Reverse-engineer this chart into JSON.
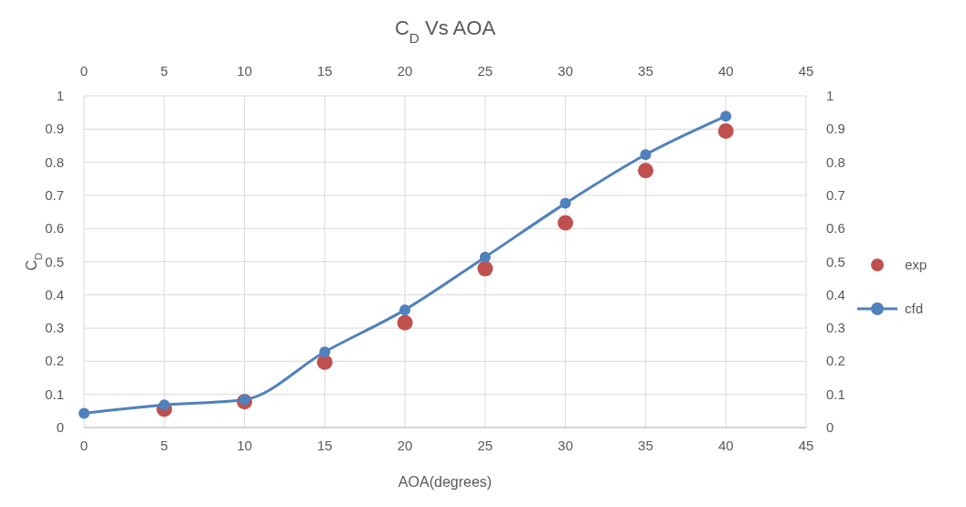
{
  "chart_data": {
    "type": "line",
    "title": "C$_{D}$ Vs AOA",
    "xlabel": "AOA(degrees)",
    "ylabel": "C$_{D}$",
    "x": [
      0,
      5,
      10,
      15,
      20,
      25,
      30,
      35,
      40
    ],
    "series": [
      {
        "name": "exp",
        "type": "scatter",
        "color": "#c0504d",
        "values": [
          null,
          0.055,
          0.078,
          0.197,
          0.316,
          0.479,
          0.617,
          0.775,
          0.894
        ]
      },
      {
        "name": "cfd",
        "color": "#4f81bd",
        "values": [
          0.043,
          0.068,
          0.084,
          0.228,
          0.355,
          0.514,
          0.676,
          0.823,
          0.939
        ]
      }
    ],
    "xlim": [
      0,
      45
    ],
    "xticks": [
      0,
      5,
      10,
      15,
      20,
      25,
      30,
      35,
      40,
      45
    ],
    "x2lim": [
      0,
      45
    ],
    "x2ticks": [
      0,
      5,
      10,
      15,
      20,
      25,
      30,
      35,
      40,
      45
    ],
    "ylim": [
      0,
      1
    ],
    "yticks": [
      0,
      0.1,
      0.2,
      0.3,
      0.4,
      0.5,
      0.6,
      0.7,
      0.8,
      0.9,
      1
    ],
    "y2lim": [
      0,
      1
    ],
    "y2ticks": [
      0,
      0.1,
      0.2,
      0.3,
      0.4,
      0.5,
      0.6,
      0.7,
      0.8,
      0.9,
      1
    ],
    "grid": true,
    "legend": "right",
    "marker": "circle",
    "line_style": "solid"
  }
}
